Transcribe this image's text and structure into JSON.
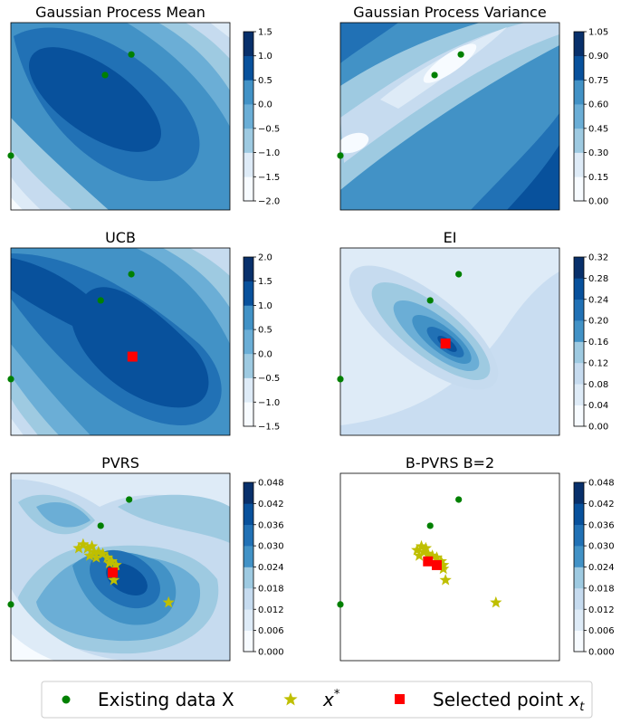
{
  "palette": [
    "#f7fbff",
    "#deebf7",
    "#c6dbef",
    "#9ecae1",
    "#6baed6",
    "#4292c6",
    "#2171b5",
    "#08519c",
    "#08306b"
  ],
  "marker_colors": {
    "existing": "#008000",
    "star": "#bfbf00",
    "selected": "#ff0000"
  },
  "legend": {
    "existing_label": "Existing data X",
    "star_label_main": "x",
    "star_label_sup": "*",
    "selected_label_main": "Selected point ",
    "selected_label_italic": "x",
    "selected_label_sub": "t"
  },
  "chart_data": [
    {
      "type": "contour",
      "title": "Gaussian Process Mean",
      "colorbar_ticks": [
        "−2.0",
        "−1.5",
        "−1.0",
        "−0.5",
        "0.0",
        "0.5",
        "1.0",
        "1.5"
      ],
      "existing_points": [
        [
          0.55,
          0.83
        ],
        [
          0.43,
          0.72
        ],
        [
          0.0,
          0.29
        ]
      ],
      "stars": [],
      "selected": []
    },
    {
      "type": "contour",
      "title": "Gaussian Process Variance",
      "colorbar_ticks": [
        "0.00",
        "0.15",
        "0.30",
        "0.45",
        "0.60",
        "0.75",
        "0.90",
        "1.05"
      ],
      "existing_points": [
        [
          0.55,
          0.83
        ],
        [
          0.43,
          0.72
        ],
        [
          0.0,
          0.29
        ]
      ],
      "stars": [],
      "selected": []
    },
    {
      "type": "contour",
      "title": "UCB",
      "colorbar_ticks": [
        "−1.5",
        "−1.0",
        "−0.5",
        "0.0",
        "0.5",
        "1.0",
        "1.5",
        "2.0"
      ],
      "existing_points": [
        [
          0.55,
          0.86
        ],
        [
          0.41,
          0.72
        ],
        [
          0.0,
          0.3
        ]
      ],
      "stars": [],
      "selected": [
        [
          0.555,
          0.42
        ]
      ]
    },
    {
      "type": "contour",
      "title": "EI",
      "colorbar_ticks": [
        "0.00",
        "0.04",
        "0.08",
        "0.12",
        "0.16",
        "0.20",
        "0.24",
        "0.28",
        "0.32"
      ],
      "existing_points": [
        [
          0.54,
          0.86
        ],
        [
          0.41,
          0.72
        ],
        [
          0.0,
          0.3
        ]
      ],
      "stars": [],
      "selected": [
        [
          0.48,
          0.49
        ]
      ]
    },
    {
      "type": "contour",
      "title": "PVRS",
      "colorbar_ticks": [
        "0.000",
        "0.006",
        "0.012",
        "0.018",
        "0.024",
        "0.030",
        "0.036",
        "0.042",
        "0.048"
      ],
      "existing_points": [
        [
          0.54,
          0.86
        ],
        [
          0.41,
          0.72
        ],
        [
          0.0,
          0.3
        ]
      ],
      "stars": [
        [
          0.33,
          0.62
        ],
        [
          0.35,
          0.6
        ],
        [
          0.37,
          0.61
        ],
        [
          0.38,
          0.58
        ],
        [
          0.36,
          0.56
        ],
        [
          0.4,
          0.58
        ],
        [
          0.42,
          0.57
        ],
        [
          0.44,
          0.55
        ],
        [
          0.46,
          0.53
        ],
        [
          0.48,
          0.51
        ],
        [
          0.45,
          0.52
        ],
        [
          0.39,
          0.55
        ],
        [
          0.47,
          0.48
        ],
        [
          0.31,
          0.6
        ],
        [
          0.47,
          0.43
        ],
        [
          0.72,
          0.31
        ]
      ],
      "selected": [
        [
          0.465,
          0.47
        ]
      ]
    },
    {
      "type": "scatter",
      "title": "B-PVRS B=2",
      "colorbar_ticks": [
        "0.000",
        "0.006",
        "0.012",
        "0.018",
        "0.024",
        "0.030",
        "0.036",
        "0.042",
        "0.048"
      ],
      "existing_points": [
        [
          0.54,
          0.86
        ],
        [
          0.41,
          0.72
        ],
        [
          0.0,
          0.3
        ]
      ],
      "stars": [
        [
          0.35,
          0.59
        ],
        [
          0.37,
          0.61
        ],
        [
          0.38,
          0.58
        ],
        [
          0.36,
          0.56
        ],
        [
          0.4,
          0.57
        ],
        [
          0.42,
          0.56
        ],
        [
          0.44,
          0.55
        ],
        [
          0.46,
          0.53
        ],
        [
          0.47,
          0.51
        ],
        [
          0.45,
          0.52
        ],
        [
          0.39,
          0.6
        ],
        [
          0.47,
          0.49
        ],
        [
          0.48,
          0.43
        ],
        [
          0.71,
          0.31
        ]
      ],
      "selected": [
        [
          0.4,
          0.53
        ],
        [
          0.44,
          0.51
        ]
      ]
    }
  ]
}
